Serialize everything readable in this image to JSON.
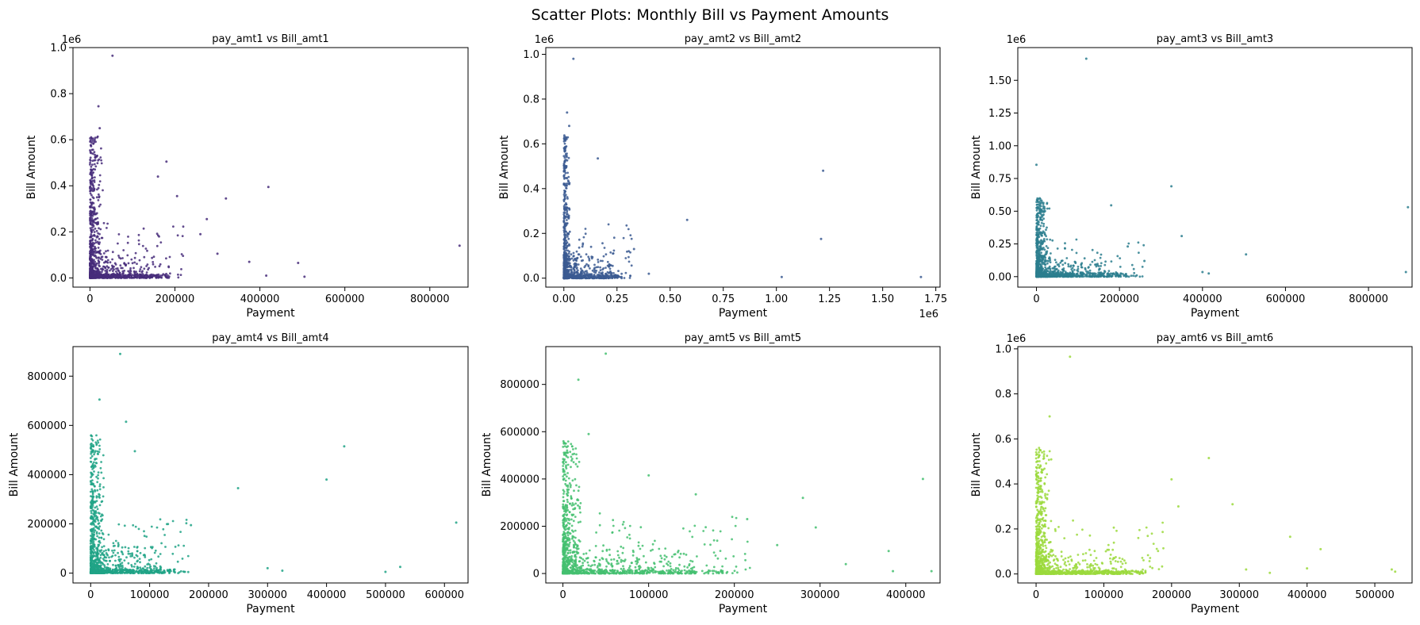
{
  "figure": {
    "title": "Scatter Plots: Monthly Bill vs Payment Amounts"
  },
  "chart_data": [
    {
      "type": "scatter",
      "title": "pay_amt1 vs Bill_amt1",
      "xlabel": "Payment",
      "ylabel": "Bill Amount",
      "color": "#472c7a",
      "xlim": [
        -40000,
        890000
      ],
      "ylim": [
        -40000,
        1000000
      ],
      "xticks": [
        0,
        200000,
        400000,
        600000,
        800000
      ],
      "xtick_labels": [
        "0",
        "200000",
        "400000",
        "600000",
        "800000"
      ],
      "x_offset": "",
      "yticks": [
        0,
        200000,
        400000,
        600000,
        800000,
        1000000
      ],
      "ytick_labels": [
        "0.0",
        "0.2",
        "0.4",
        "0.6",
        "0.8",
        "1.0"
      ],
      "y_offset": "1e6",
      "cluster": {
        "x_core": 20000,
        "y_max": 620000,
        "x_spread": 110000,
        "y_spread": 120000
      },
      "outliers": [
        [
          53000,
          965000
        ],
        [
          20000,
          745000
        ],
        [
          23000,
          650000
        ],
        [
          160000,
          440000
        ],
        [
          180000,
          505000
        ],
        [
          205000,
          355000
        ],
        [
          320000,
          345000
        ],
        [
          420000,
          395000
        ],
        [
          275000,
          255000
        ],
        [
          300000,
          105000
        ],
        [
          375000,
          70000
        ],
        [
          415000,
          10000
        ],
        [
          490000,
          65000
        ],
        [
          505000,
          5000
        ],
        [
          870000,
          140000
        ],
        [
          260000,
          190000
        ]
      ],
      "n_points": 900
    },
    {
      "type": "scatter",
      "title": "pay_amt2 vs Bill_amt2",
      "xlabel": "Payment",
      "ylabel": "Bill Amount",
      "color": "#3b5a92",
      "xlim": [
        -85000,
        1770000
      ],
      "ylim": [
        -40000,
        1030000
      ],
      "xticks": [
        0,
        250000,
        500000,
        750000,
        1000000,
        1250000,
        1500000,
        1750000
      ],
      "xtick_labels": [
        "0.00",
        "0.25",
        "0.50",
        "0.75",
        "1.00",
        "1.25",
        "1.50",
        "1.75"
      ],
      "x_offset": "1e6",
      "yticks": [
        0,
        200000,
        400000,
        600000,
        800000,
        1000000
      ],
      "ytick_labels": [
        "0.0",
        "0.2",
        "0.4",
        "0.6",
        "0.8",
        "1.0"
      ],
      "y_offset": "1e6",
      "cluster": {
        "x_core": 20000,
        "y_max": 640000,
        "x_spread": 160000,
        "y_spread": 110000
      },
      "outliers": [
        [
          45000,
          980000
        ],
        [
          15000,
          740000
        ],
        [
          25000,
          680000
        ],
        [
          160000,
          535000
        ],
        [
          1220000,
          480000
        ],
        [
          580000,
          260000
        ],
        [
          1210000,
          175000
        ],
        [
          1025000,
          5000
        ],
        [
          1680000,
          5000
        ],
        [
          330000,
          130000
        ],
        [
          400000,
          20000
        ]
      ],
      "n_points": 800
    },
    {
      "type": "scatter",
      "title": "pay_amt3 vs Bill_amt3",
      "xlabel": "Payment",
      "ylabel": "Bill Amount",
      "color": "#2c7e8e",
      "xlim": [
        -45000,
        905000
      ],
      "ylim": [
        -80000,
        1750000
      ],
      "xticks": [
        0,
        200000,
        400000,
        600000,
        800000
      ],
      "xtick_labels": [
        "0",
        "200000",
        "400000",
        "600000",
        "800000"
      ],
      "x_offset": "",
      "yticks": [
        0,
        250000,
        500000,
        750000,
        1000000,
        1250000,
        1500000
      ],
      "ytick_labels": [
        "0.00",
        "0.25",
        "0.50",
        "0.75",
        "1.00",
        "1.25",
        "1.50"
      ],
      "y_offset": "1e6",
      "cluster": {
        "x_core": 20000,
        "y_max": 600000,
        "x_spread": 130000,
        "y_spread": 130000
      },
      "outliers": [
        [
          120000,
          1665000
        ],
        [
          0,
          855000
        ],
        [
          325000,
          690000
        ],
        [
          180000,
          545000
        ],
        [
          895000,
          530000
        ],
        [
          350000,
          310000
        ],
        [
          505000,
          170000
        ],
        [
          400000,
          35000
        ],
        [
          890000,
          35000
        ],
        [
          415000,
          25000
        ],
        [
          220000,
          230000
        ],
        [
          260000,
          120000
        ]
      ],
      "n_points": 850
    },
    {
      "type": "scatter",
      "title": "pay_amt4 vs Bill_amt4",
      "xlabel": "Payment",
      "ylabel": "Bill Amount",
      "color": "#20a386",
      "xlim": [
        -30000,
        640000
      ],
      "ylim": [
        -40000,
        920000
      ],
      "xticks": [
        0,
        100000,
        200000,
        300000,
        400000,
        500000,
        600000
      ],
      "xtick_labels": [
        "0",
        "100000",
        "200000",
        "300000",
        "400000",
        "500000",
        "600000"
      ],
      "x_offset": "",
      "yticks": [
        0,
        200000,
        400000,
        600000,
        800000
      ],
      "ytick_labels": [
        "0",
        "200000",
        "400000",
        "600000",
        "800000"
      ],
      "y_offset": "",
      "cluster": {
        "x_core": 15000,
        "y_max": 560000,
        "x_spread": 85000,
        "y_spread": 110000
      },
      "outliers": [
        [
          50000,
          890000
        ],
        [
          15000,
          705000
        ],
        [
          60000,
          615000
        ],
        [
          430000,
          515000
        ],
        [
          75000,
          495000
        ],
        [
          400000,
          380000
        ],
        [
          250000,
          345000
        ],
        [
          620000,
          205000
        ],
        [
          500000,
          5000
        ],
        [
          525000,
          25000
        ],
        [
          325000,
          10000
        ],
        [
          300000,
          20000
        ],
        [
          170000,
          195000
        ]
      ],
      "n_points": 900
    },
    {
      "type": "scatter",
      "title": "pay_amt5 vs Bill_amt5",
      "xlabel": "Payment",
      "ylabel": "Bill Amount",
      "color": "#44bf70",
      "xlim": [
        -20000,
        440000
      ],
      "ylim": [
        -40000,
        960000
      ],
      "xticks": [
        0,
        100000,
        200000,
        300000,
        400000
      ],
      "xtick_labels": [
        "0",
        "100000",
        "200000",
        "300000",
        "400000"
      ],
      "x_offset": "",
      "yticks": [
        0,
        200000,
        400000,
        600000,
        800000
      ],
      "ytick_labels": [
        "0",
        "200000",
        "400000",
        "600000",
        "800000"
      ],
      "y_offset": "",
      "cluster": {
        "x_core": 15000,
        "y_max": 560000,
        "x_spread": 110000,
        "y_spread": 120000
      },
      "outliers": [
        [
          50000,
          930000
        ],
        [
          18000,
          820000
        ],
        [
          30000,
          590000
        ],
        [
          100000,
          415000
        ],
        [
          420000,
          400000
        ],
        [
          155000,
          335000
        ],
        [
          280000,
          320000
        ],
        [
          295000,
          195000
        ],
        [
          380000,
          95000
        ],
        [
          385000,
          10000
        ],
        [
          430000,
          10000
        ],
        [
          330000,
          40000
        ],
        [
          215000,
          230000
        ],
        [
          250000,
          120000
        ]
      ],
      "n_points": 950
    },
    {
      "type": "scatter",
      "title": "pay_amt6 vs Bill_amt6",
      "xlabel": "Payment",
      "ylabel": "Bill Amount",
      "color": "#9bd93c",
      "xlim": [
        -27000,
        555000
      ],
      "ylim": [
        -40000,
        1010000
      ],
      "xticks": [
        0,
        100000,
        200000,
        300000,
        400000,
        500000
      ],
      "xtick_labels": [
        "0",
        "100000",
        "200000",
        "300000",
        "400000",
        "500000"
      ],
      "x_offset": "",
      "yticks": [
        0,
        200000,
        400000,
        600000,
        800000,
        1000000
      ],
      "ytick_labels": [
        "0.0",
        "0.2",
        "0.4",
        "0.6",
        "0.8",
        "1.0"
      ],
      "y_offset": "1e6",
      "cluster": {
        "x_core": 15000,
        "y_max": 560000,
        "x_spread": 95000,
        "y_spread": 110000
      },
      "outliers": [
        [
          50000,
          965000
        ],
        [
          20000,
          700000
        ],
        [
          255000,
          515000
        ],
        [
          200000,
          420000
        ],
        [
          290000,
          310000
        ],
        [
          210000,
          300000
        ],
        [
          375000,
          165000
        ],
        [
          420000,
          110000
        ],
        [
          310000,
          20000
        ],
        [
          345000,
          5000
        ],
        [
          530000,
          10000
        ],
        [
          525000,
          20000
        ],
        [
          400000,
          25000
        ]
      ],
      "n_points": 900
    }
  ]
}
